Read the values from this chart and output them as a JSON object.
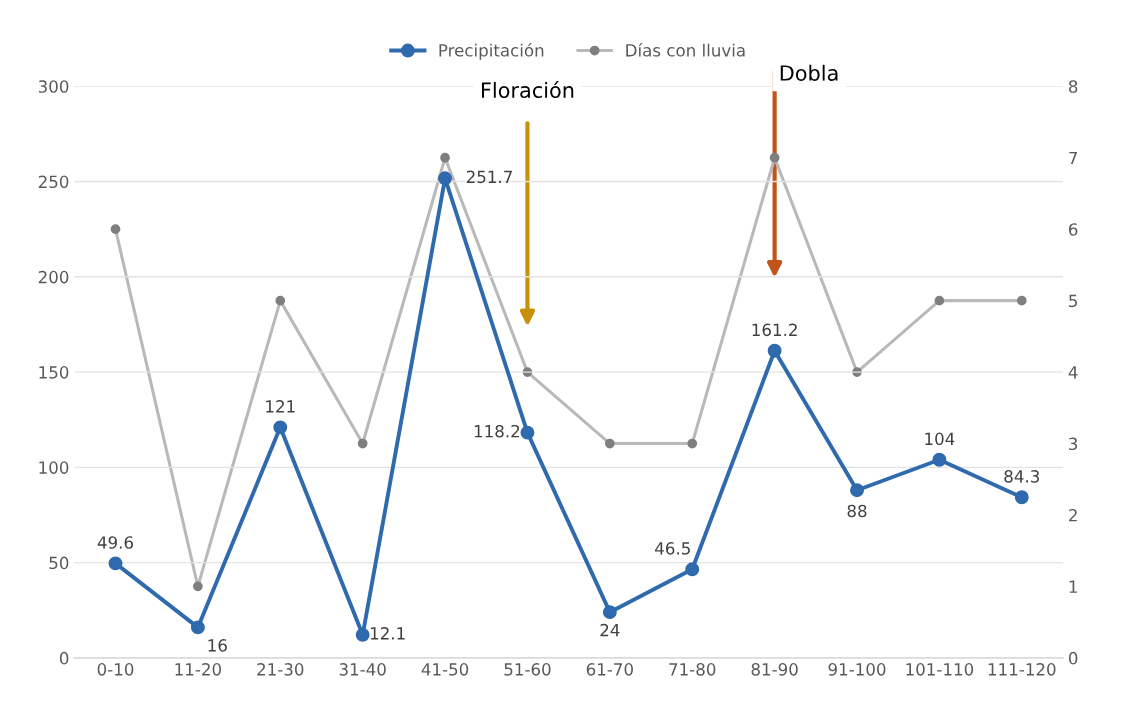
{
  "chart_data": {
    "type": "line",
    "categories": [
      "0-10",
      "11-20",
      "21-30",
      "31-40",
      "41-50",
      "51-60",
      "61-70",
      "71-80",
      "81-90",
      "91-100",
      "101-110",
      "111-120"
    ],
    "series": [
      {
        "name": "Precipitación",
        "color": "#2e6aad",
        "values": [
          49.6,
          16,
          121,
          12.1,
          251.7,
          118.2,
          24,
          46.5,
          161.2,
          88,
          104,
          84.3
        ],
        "data_labels": true
      },
      {
        "name": "Días con lluvia",
        "color": "#b9b9b9",
        "axis": "y2",
        "values": [
          6,
          1,
          5,
          3,
          7,
          4,
          3,
          3,
          7,
          4,
          5,
          5
        ]
      }
    ],
    "ylim": [
      0,
      300
    ],
    "yticks": [
      0,
      50,
      100,
      150,
      200,
      250,
      300
    ],
    "y2lim": [
      0,
      8
    ],
    "y2ticks": [
      0,
      1,
      2,
      3,
      4,
      5,
      6,
      7,
      8
    ],
    "annotations": [
      "Floración",
      "Dobla"
    ],
    "grid": "y",
    "legend": "top",
    "marker": "circle"
  }
}
